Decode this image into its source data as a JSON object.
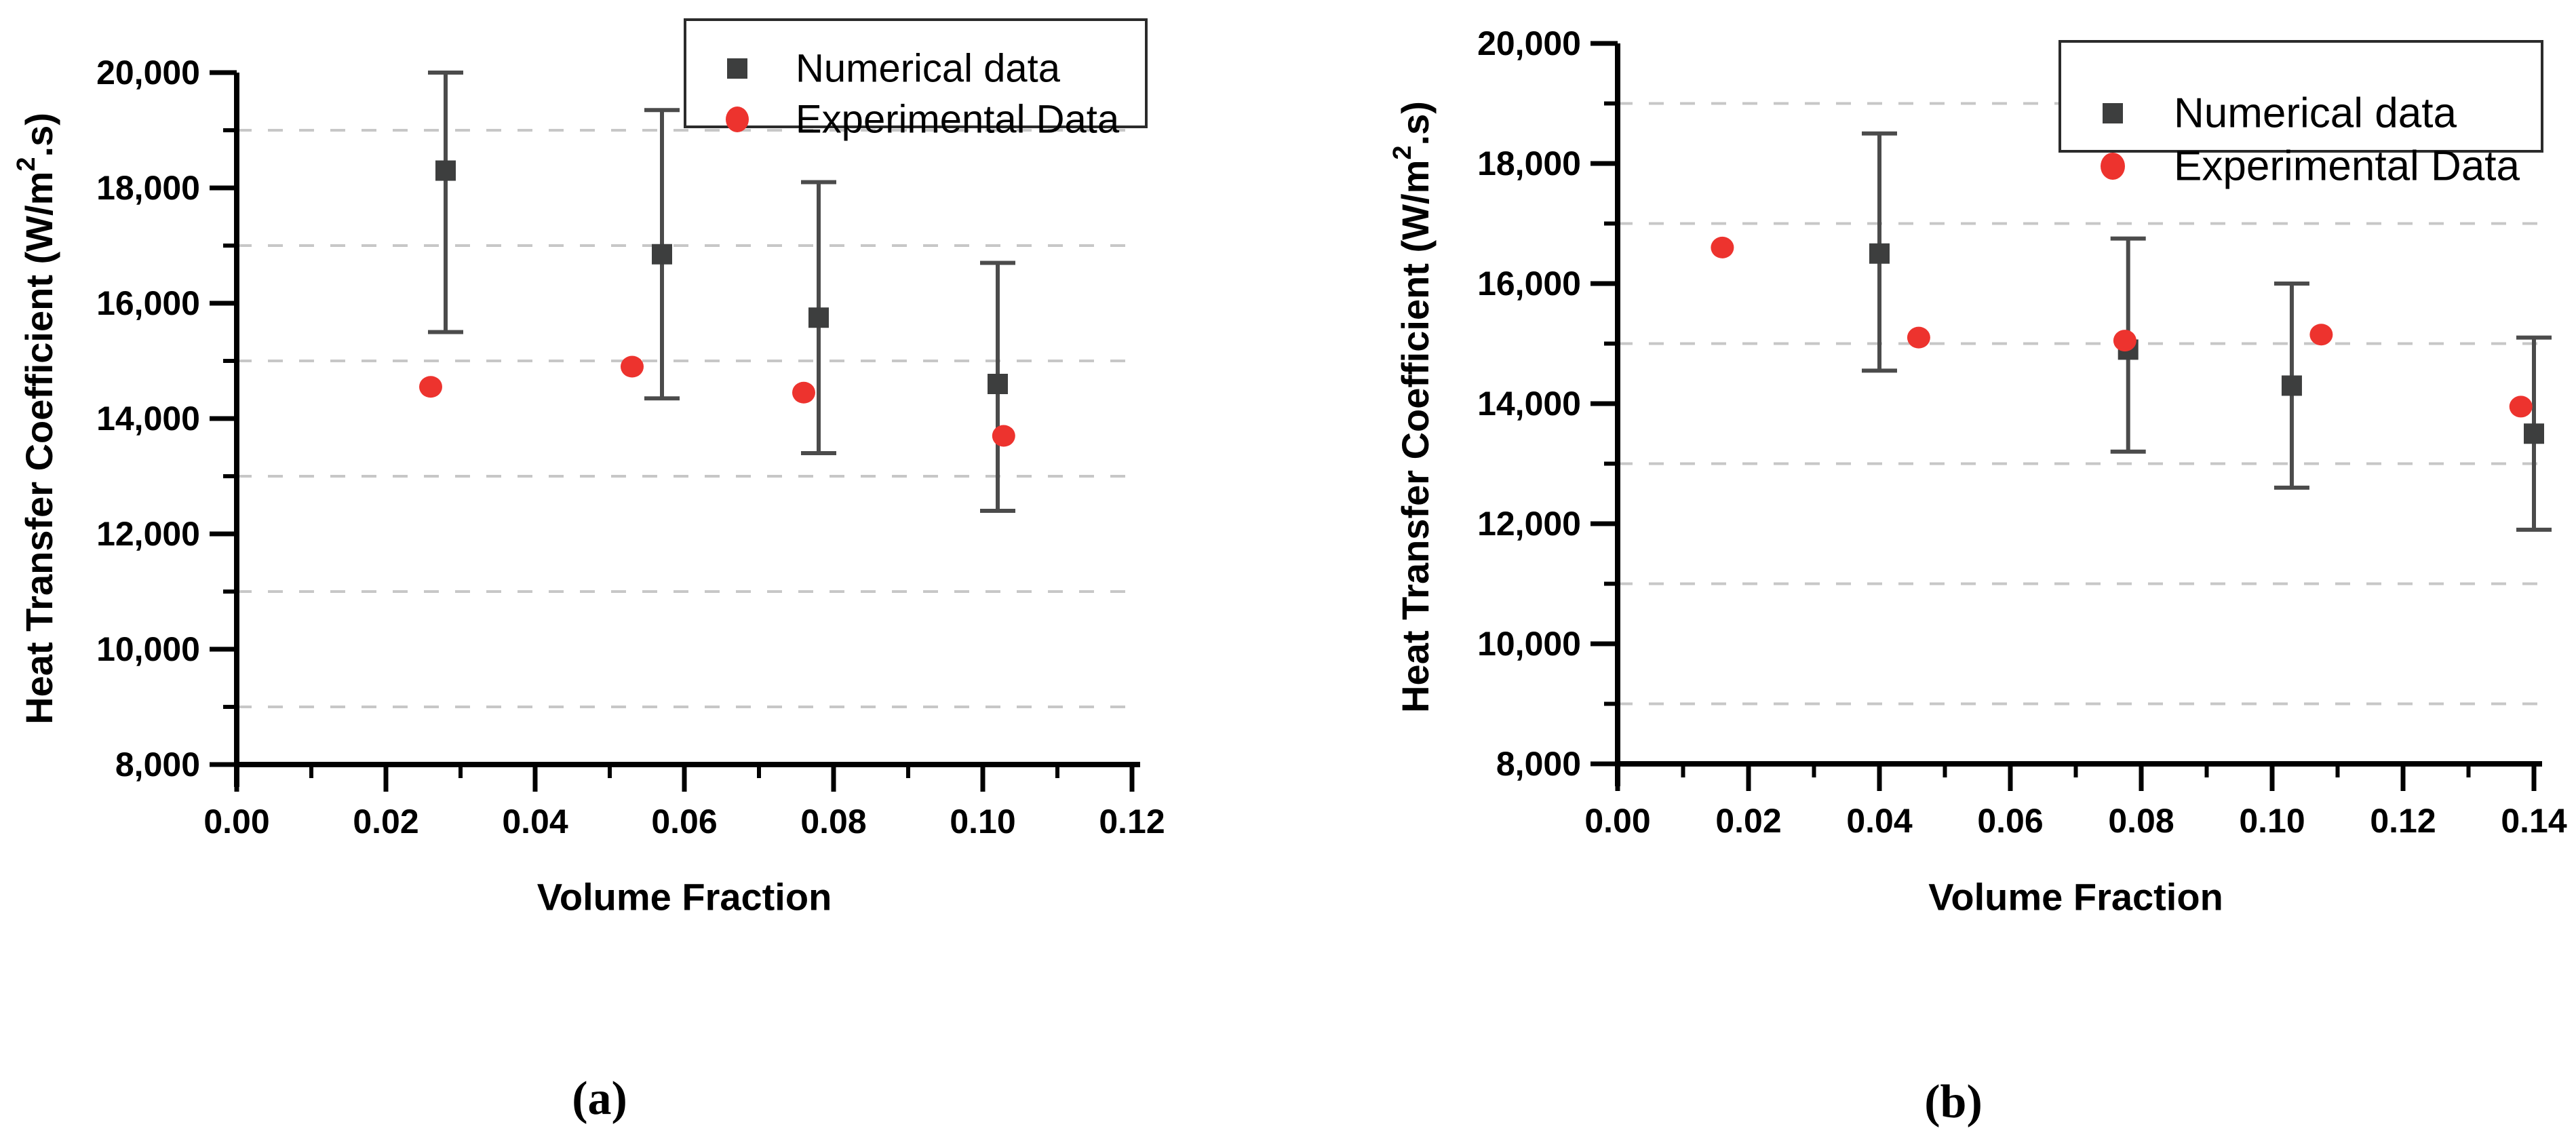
{
  "figure": {
    "background": "#ffffff",
    "colors": {
      "numerical": "#3d3e3e",
      "experimental": "#ed332e",
      "error_bar": "#4b4b4b",
      "gridline": "#c7c7c7",
      "axis": "#000000",
      "legend_border": "#2b2b2b"
    }
  },
  "chart_data": [
    {
      "type": "scatter",
      "panel": "a",
      "caption": "(a)",
      "title": "",
      "xlabel": "Volume Fraction",
      "ylabel": "Heat Transfer Coefficient (W/m2.s)",
      "ylabel_parts": {
        "prefix": "Heat Transfer Coefficient (W/m",
        "superscript": "2",
        "suffix": ".s)"
      },
      "xlim": [
        0.0,
        0.12
      ],
      "ylim": [
        8000,
        20000
      ],
      "x_ticks": [
        0.0,
        0.02,
        0.04,
        0.06,
        0.08,
        0.1,
        0.12
      ],
      "x_tick_labels": [
        "0.00",
        "0.02",
        "0.04",
        "0.06",
        "0.08",
        "0.10",
        "0.12"
      ],
      "x_minor_ticks": [
        0.01,
        0.03,
        0.05,
        0.07,
        0.09,
        0.11
      ],
      "y_ticks": [
        8000,
        10000,
        12000,
        14000,
        16000,
        18000,
        20000
      ],
      "y_tick_labels": [
        "8,000",
        "10,000",
        "12,000",
        "14,000",
        "16,000",
        "18,000",
        "20,000"
      ],
      "y_gridlines": [
        9000,
        11000,
        13000,
        15000,
        17000,
        19000
      ],
      "grid_style": "dashed-horizontal",
      "legend": {
        "position": "top-right-inside",
        "entries": [
          {
            "label": "Numerical data",
            "marker": "square",
            "color": "#3d3e3e"
          },
          {
            "label": "Experimental Data",
            "marker": "circle",
            "color": "#ed332e"
          }
        ]
      },
      "series": [
        {
          "name": "Numerical data",
          "marker": "square",
          "color": "#3d3e3e",
          "error_bars": true,
          "points": [
            {
              "x": 0.028,
              "y": 18300,
              "y_low": 15500,
              "y_high": 20000
            },
            {
              "x": 0.057,
              "y": 16850,
              "y_low": 14350,
              "y_high": 19350
            },
            {
              "x": 0.078,
              "y": 15750,
              "y_low": 13400,
              "y_high": 18100
            },
            {
              "x": 0.102,
              "y": 14600,
              "y_low": 12400,
              "y_high": 16700
            }
          ]
        },
        {
          "name": "Experimental Data",
          "marker": "circle",
          "color": "#ed332e",
          "error_bars": false,
          "points": [
            {
              "x": 0.026,
              "y": 14550
            },
            {
              "x": 0.053,
              "y": 14900
            },
            {
              "x": 0.076,
              "y": 14450
            },
            {
              "x": 0.1028,
              "y": 13700
            }
          ]
        }
      ]
    },
    {
      "type": "scatter",
      "panel": "b",
      "caption": "(b)",
      "title": "",
      "xlabel": "Volume Fraction",
      "ylabel": "Heat Transfer Coefficient (W/m2.s)",
      "ylabel_parts": {
        "prefix": "Heat Transfer Coefficient (W/m",
        "superscript": "2",
        "suffix": ".s)"
      },
      "xlim": [
        0.0,
        0.14
      ],
      "ylim": [
        8000,
        20000
      ],
      "x_ticks": [
        0.0,
        0.02,
        0.04,
        0.06,
        0.08,
        0.1,
        0.12,
        0.14
      ],
      "x_tick_labels": [
        "0.00",
        "0.02",
        "0.04",
        "0.06",
        "0.08",
        "0.10",
        "0.12",
        "0.14"
      ],
      "x_minor_ticks": [
        0.01,
        0.03,
        0.05,
        0.07,
        0.09,
        0.11,
        0.13
      ],
      "y_ticks": [
        8000,
        10000,
        12000,
        14000,
        16000,
        18000,
        20000
      ],
      "y_tick_labels": [
        "8,000",
        "10,000",
        "12,000",
        "14,000",
        "16,000",
        "18,000",
        "20,000"
      ],
      "y_gridlines": [
        9000,
        11000,
        13000,
        15000,
        17000,
        19000
      ],
      "grid_style": "dashed-horizontal",
      "legend": {
        "position": "top-right-inside",
        "entries": [
          {
            "label": "Numerical data",
            "marker": "square",
            "color": "#3d3e3e"
          },
          {
            "label": "Experimental Data",
            "marker": "circle",
            "color": "#ed332e"
          }
        ]
      },
      "series": [
        {
          "name": "Numerical data",
          "marker": "square",
          "color": "#3d3e3e",
          "error_bars": true,
          "points": [
            {
              "x": 0.04,
              "y": 16500,
              "y_low": 14550,
              "y_high": 18500
            },
            {
              "x": 0.078,
              "y": 14900,
              "y_low": 13200,
              "y_high": 16750
            },
            {
              "x": 0.103,
              "y": 14300,
              "y_low": 12600,
              "y_high": 16000
            },
            {
              "x": 0.14,
              "y": 13500,
              "y_low": 11900,
              "y_high": 15100
            }
          ]
        },
        {
          "name": "Experimental Data",
          "marker": "circle",
          "color": "#ed332e",
          "error_bars": false,
          "points": [
            {
              "x": 0.016,
              "y": 16600
            },
            {
              "x": 0.046,
              "y": 15100
            },
            {
              "x": 0.0775,
              "y": 15050
            },
            {
              "x": 0.1075,
              "y": 15150
            },
            {
              "x": 0.138,
              "y": 13950
            }
          ]
        }
      ]
    }
  ]
}
